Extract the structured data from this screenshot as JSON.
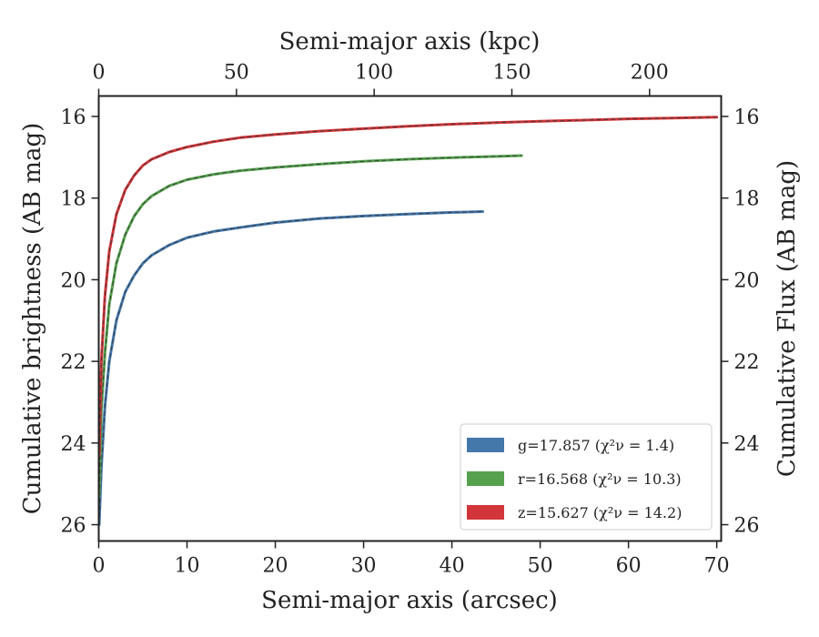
{
  "chart_data": {
    "type": "line",
    "xlabel": "Semi-major axis (arcsec)",
    "x2label": "Semi-major axis (kpc)",
    "ylabel": "Cumulative brightness (AB mag)",
    "y2label": "Cumulative Flux (AB mag)",
    "xlim": [
      0,
      70.5
    ],
    "x2lim": [
      0,
      226
    ],
    "ylim": [
      26.4,
      15.5
    ],
    "y_inverted": true,
    "xticks": [
      0,
      10,
      20,
      30,
      40,
      50,
      60,
      70
    ],
    "x2ticks": [
      0,
      50,
      100,
      150,
      200
    ],
    "yticks": [
      16,
      18,
      20,
      22,
      24,
      26
    ],
    "grid": false,
    "legend_position": "lower-right",
    "series": [
      {
        "name": "g",
        "legend_label": "g=17.857",
        "legend_chi": "(χ²ν = 1.4)",
        "color": "#4477aa",
        "x": [
          0.05,
          0.3,
          0.7,
          1.2,
          2,
          3,
          4,
          5,
          6,
          8,
          10,
          13,
          16,
          20,
          25,
          30,
          35,
          40,
          43.5
        ],
        "y": [
          26.0,
          24.6,
          23.1,
          22.0,
          21.0,
          20.3,
          19.9,
          19.6,
          19.4,
          19.15,
          18.97,
          18.82,
          18.72,
          18.6,
          18.5,
          18.44,
          18.39,
          18.35,
          18.33
        ]
      },
      {
        "name": "r",
        "legend_label": "r=16.568",
        "legend_chi": "(χ²ν = 10.3)",
        "color": "#55a14e",
        "x": [
          0.05,
          0.3,
          0.7,
          1.2,
          2,
          3,
          4,
          5,
          6,
          8,
          10,
          13,
          16,
          20,
          25,
          30,
          35,
          40,
          45,
          47.9
        ],
        "y": [
          25.3,
          23.2,
          21.8,
          20.6,
          19.6,
          18.9,
          18.45,
          18.15,
          17.95,
          17.7,
          17.55,
          17.42,
          17.33,
          17.25,
          17.17,
          17.1,
          17.05,
          17.01,
          16.98,
          16.96
        ]
      },
      {
        "name": "z",
        "legend_label": "z=15.627",
        "legend_chi": "(χ²ν = 14.2)",
        "color": "#d2363a",
        "x": [
          0.05,
          0.3,
          0.7,
          1.2,
          2,
          3,
          4,
          5,
          6,
          8,
          10,
          13,
          16,
          20,
          25,
          30,
          35,
          40,
          45,
          50,
          55,
          60,
          65,
          70
        ],
        "y": [
          24.3,
          22.0,
          20.4,
          19.3,
          18.4,
          17.8,
          17.45,
          17.2,
          17.05,
          16.87,
          16.75,
          16.62,
          16.52,
          16.44,
          16.36,
          16.3,
          16.24,
          16.19,
          16.15,
          16.12,
          16.09,
          16.06,
          16.04,
          16.02
        ]
      }
    ]
  }
}
